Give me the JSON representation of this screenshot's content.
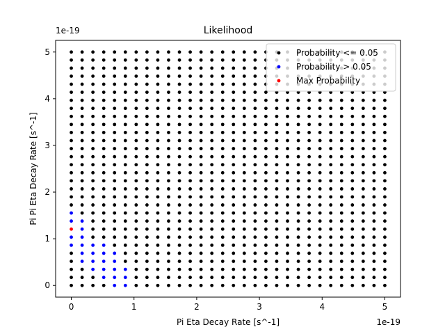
{
  "chart_data": {
    "type": "scatter",
    "title": "Likelihood",
    "xlabel": "Pi Eta Decay Rate [s^-1]",
    "ylabel": "Pi Pi Eta Decay Rate [s^-1]",
    "x_offset_label": "1e-19",
    "y_offset_label": "1e-19",
    "xlim": [
      -0.25,
      5.25
    ],
    "ylim": [
      -0.25,
      5.25
    ],
    "xticks": [
      0,
      1,
      2,
      3,
      4,
      5
    ],
    "yticks": [
      0,
      1,
      2,
      3,
      4,
      5
    ],
    "grid": false,
    "legend_position": "top-right",
    "grid_step": 0.1724,
    "grid_count": 30,
    "series": [
      {
        "name": "Probability <= 0.05",
        "color": "#000000",
        "points": "all grid points not listed in other series"
      },
      {
        "name": "Probability > 0.05",
        "color": "#0000ff",
        "points": [
          [
            0,
            0.862
          ],
          [
            0,
            1.034
          ],
          [
            0,
            1.379
          ],
          [
            0,
            1.552
          ],
          [
            0.172,
            0.517
          ],
          [
            0.172,
            0.69
          ],
          [
            0.172,
            0.862
          ],
          [
            0.172,
            1.034
          ],
          [
            0.172,
            1.207
          ],
          [
            0.172,
            1.379
          ],
          [
            0.345,
            0.345
          ],
          [
            0.345,
            0.517
          ],
          [
            0.345,
            0.69
          ],
          [
            0.345,
            0.862
          ],
          [
            0.517,
            0.172
          ],
          [
            0.517,
            0.345
          ],
          [
            0.517,
            0.517
          ],
          [
            0.517,
            0.69
          ],
          [
            0.517,
            0.862
          ],
          [
            0.69,
            0.0
          ],
          [
            0.69,
            0.172
          ],
          [
            0.69,
            0.345
          ],
          [
            0.69,
            0.517
          ],
          [
            0.69,
            0.69
          ],
          [
            0.862,
            0.0
          ],
          [
            0.862,
            0.172
          ],
          [
            0.862,
            0.345
          ]
        ]
      },
      {
        "name": "Max Probability",
        "color": "#ff0000",
        "points": [
          [
            0,
            1.207
          ]
        ]
      }
    ]
  }
}
